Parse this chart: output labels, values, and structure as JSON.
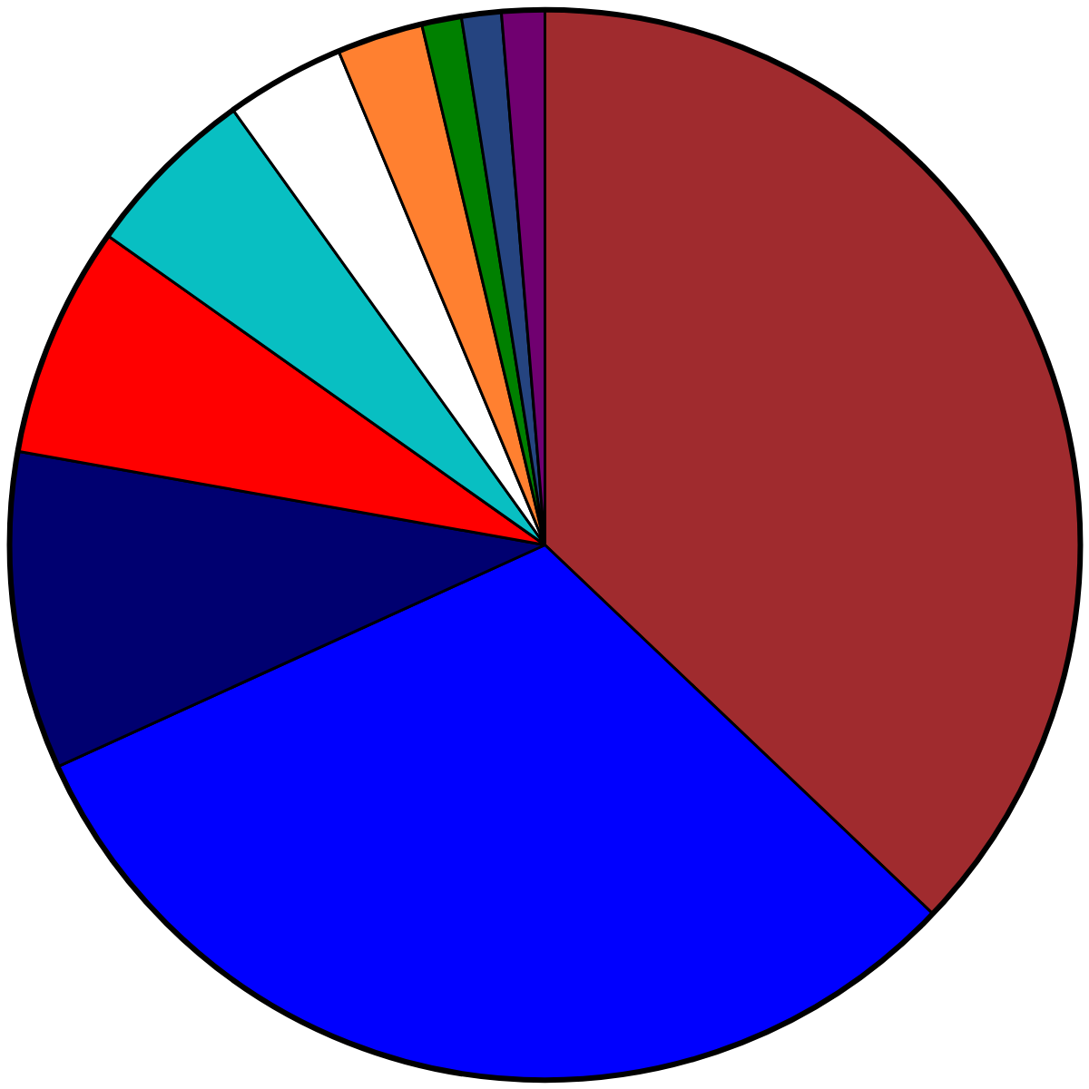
{
  "chart_data": {
    "type": "pie",
    "categories": [
      null,
      null,
      null,
      null,
      null,
      null,
      null,
      null,
      null,
      null
    ],
    "values": [
      37.1,
      31.1,
      9.6,
      7.0,
      5.3,
      3.6,
      2.6,
      1.2,
      1.2,
      1.3
    ],
    "colors": [
      "#a02b2e",
      "#0000ff",
      "#000070",
      "#ff0000",
      "#08bfc2",
      "#ffffff",
      "#ff8030",
      "#008000",
      "#254480",
      "#700070"
    ]
  }
}
